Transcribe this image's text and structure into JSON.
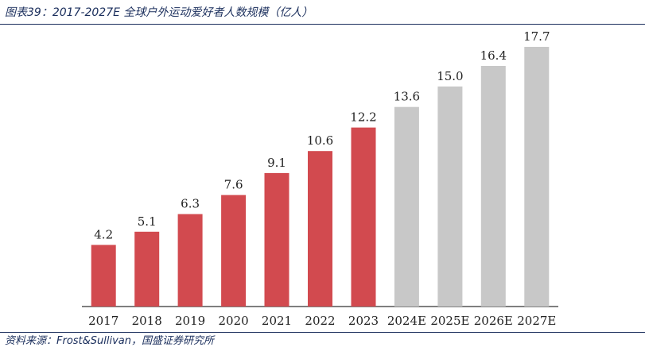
{
  "header": {
    "title": "图表39：2017-2027E 全球户外运动爱好者人数规模（亿人）"
  },
  "footer": {
    "source": "资料来源：Frost&Sullivan，国盛证券研究所"
  },
  "colors": {
    "actual_bar": "#d24a4f",
    "forecast_bar": "#c8c8c8",
    "rule": "#1a2e5c",
    "text": "#222222"
  },
  "chart_data": {
    "type": "bar",
    "title": "图表39：2017-2027E 全球户外运动爱好者人数规模（亿人）",
    "categories": [
      "2017",
      "2018",
      "2019",
      "2020",
      "2021",
      "2022",
      "2023",
      "2024E",
      "2025E",
      "2026E",
      "2027E"
    ],
    "values": [
      4.2,
      5.1,
      6.3,
      7.6,
      9.1,
      10.6,
      12.2,
      13.6,
      15.0,
      16.4,
      17.7
    ],
    "data_labels": [
      "4.2",
      "5.1",
      "6.3",
      "7.6",
      "9.1",
      "10.6",
      "12.2",
      "13.6",
      "15.0",
      "16.4",
      "17.7"
    ],
    "series_style": [
      "actual",
      "actual",
      "actual",
      "actual",
      "actual",
      "actual",
      "actual",
      "forecast",
      "forecast",
      "forecast",
      "forecast"
    ],
    "xlabel": "",
    "ylabel": "",
    "ylim": [
      0,
      17.7
    ],
    "grid": false,
    "legend": "none"
  }
}
